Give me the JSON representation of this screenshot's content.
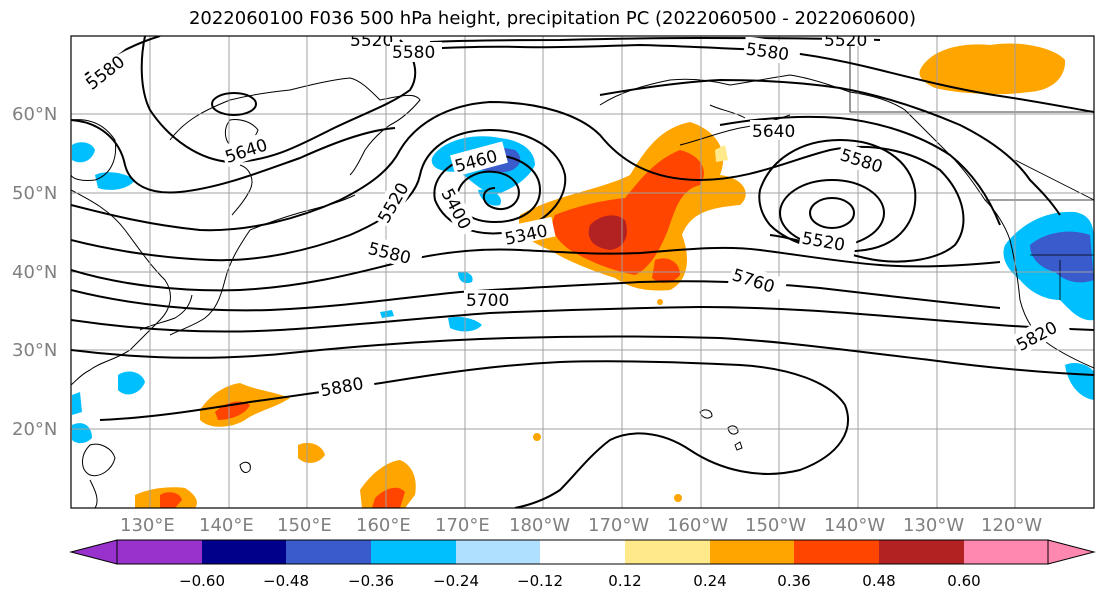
{
  "title": "2022060100 F036 500 hPa height, precipitation PC (2022060500 - 2022060600)",
  "lat_labels": [
    "60°N",
    "50°N",
    "40°N",
    "30°N",
    "20°N"
  ],
  "lon_labels": [
    "130°E",
    "140°E",
    "150°E",
    "160°E",
    "170°E",
    "180°W",
    "170°W",
    "160°W",
    "150°W",
    "140°W",
    "130°W",
    "120°W"
  ],
  "contour_labels": [
    "5580",
    "5520",
    "5580",
    "5520",
    "5580",
    "5640",
    "5640",
    "5580",
    "5460",
    "5520",
    "5400",
    "5340",
    "5520",
    "5580",
    "5700",
    "5760",
    "5820",
    "5880"
  ],
  "colorbar": {
    "ticks": [
      "−0.60",
      "−0.48",
      "−0.36",
      "−0.24",
      "−0.12",
      "0.12",
      "0.24",
      "0.36",
      "0.48",
      "0.60"
    ],
    "colors": [
      "#9932cc",
      "#00008b",
      "#3a5bcc",
      "#00bfff",
      "#b0e0ff",
      "#ffffff",
      "#ffe98a",
      "#ffa500",
      "#ff4500",
      "#b22222",
      "#ff88b0"
    ]
  }
}
